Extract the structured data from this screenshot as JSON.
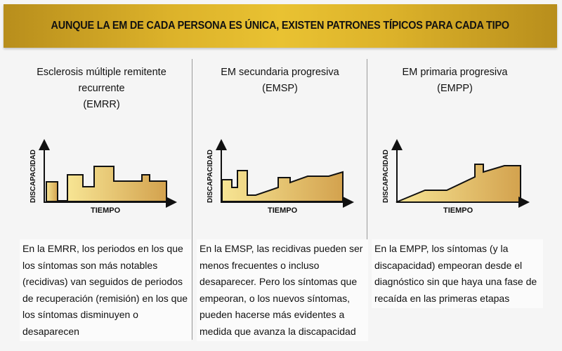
{
  "banner": {
    "title": "AUNQUE LA EM DE CADA PERSONA ES ÚNICA, EXISTEN PATRONES TÍPICOS PARA CADA TIPO"
  },
  "colors": {
    "banner": "#dcb22a",
    "fill_light": "#f6e28c",
    "fill_dark": "#d3a24e"
  },
  "columns": [
    {
      "title_line1": "Esclerosis múltiple remitente recurrente",
      "title_line2": "(EMRR)",
      "ylabel": "DISCAPACIDAD",
      "xlabel": "TIEMPO",
      "description": "En la EMRR, los periodos en los que los síntomas son más notables (recidivas) van seguidos de periodos de recuperación (remisión) en los que los síntomas disminuyen o desaparecen"
    },
    {
      "title_line1": "EM secundaria progresiva",
      "title_line2": "(EMSP)",
      "ylabel": "DISCAPACIDAD",
      "xlabel": "TIEMPO",
      "description": "En la EMSP, las recidivas pueden ser menos frecuentes o incluso desaparecer. Pero los síntomas que empeoran, o los nuevos síntomas, pueden hacerse más evidentes a medida que avanza la discapacidad"
    },
    {
      "title_line1": "EM primaria progresiva",
      "title_line2": "(EMPP)",
      "ylabel": "DISCAPACIDAD",
      "xlabel": "TIEMPO",
      "description": "En la EMPP, los síntomas (y la discapacidad) empeoran desde el diagnóstico sin que haya una fase de recaída en las primeras etapas"
    }
  ]
}
